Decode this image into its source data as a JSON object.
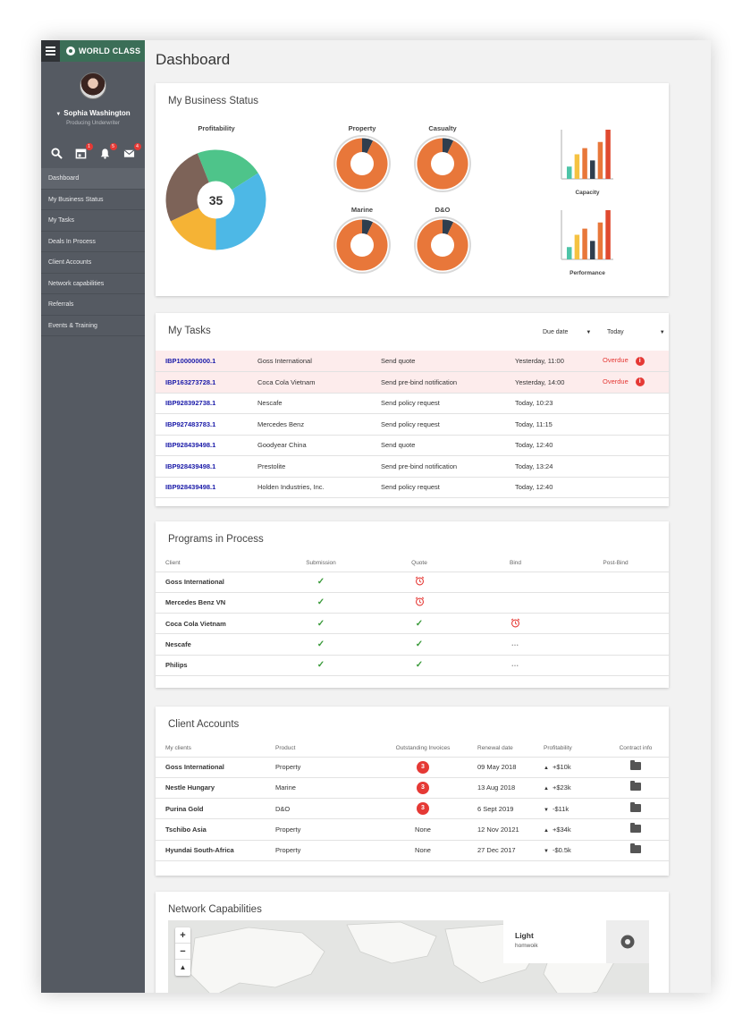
{
  "sidebar": {
    "brand": "WORLD CLASS",
    "user_name": "Sophia Washington",
    "user_role": "Producing Underwriter",
    "badges": {
      "calendar": "1",
      "bell": "5",
      "mail": "4"
    },
    "items": [
      "Dashboard",
      "My Business Status",
      "My Tasks",
      "Deals In Process",
      "Client Accounts",
      "Network capabilities",
      "Referrals",
      "Events & Training"
    ]
  },
  "page": {
    "title": "Dashboard"
  },
  "business_status": {
    "title": "My Business Status",
    "profitability_label": "Profitability",
    "profitability_value": "35",
    "donut_labels": [
      "Property",
      "Casualty",
      "Marine",
      "D&O"
    ],
    "capacity_label": "Capacity",
    "performance_label": "Performance"
  },
  "chart_data": [
    {
      "type": "pie",
      "title": "Profitability",
      "center_label": "35",
      "slices": [
        {
          "value": 22,
          "color": "#4ec48a"
        },
        {
          "value": 34,
          "color": "#4db8e6"
        },
        {
          "value": 18,
          "color": "#f5b335"
        },
        {
          "value": 26,
          "color": "#7d6358"
        }
      ]
    },
    {
      "type": "pie",
      "title": "Property / Casualty / Marine / D&O",
      "slices": [
        {
          "value": 93,
          "color": "#e8773a"
        },
        {
          "value": 7,
          "color": "#2f3e4e"
        }
      ]
    },
    {
      "type": "bar",
      "title": "Capacity",
      "values": [
        2,
        4,
        5,
        3,
        6,
        8
      ],
      "colors": [
        "#4ec4a8",
        "#f5c242",
        "#e8773a",
        "#2f3e4e",
        "#e8773a",
        "#e04a2f"
      ]
    },
    {
      "type": "bar",
      "title": "Performance",
      "values": [
        2,
        4,
        5,
        3,
        6,
        8
      ],
      "colors": [
        "#4ec4a8",
        "#f5c242",
        "#e8773a",
        "#2f3e4e",
        "#e8773a",
        "#e04a2f"
      ]
    }
  ],
  "tasks": {
    "title": "My Tasks",
    "sort_label": "Due date",
    "filter_label": "Today",
    "rows": [
      {
        "id": "IBP100000000.1",
        "client": "Goss International",
        "action": "Send quote",
        "due": "Yesterday, 11:00",
        "status": "Overdue"
      },
      {
        "id": "IBP163273728.1",
        "client": "Coca Cola Vietnam",
        "action": "Send pre-bind notification",
        "due": "Yesterday, 14:00",
        "status": "Overdue"
      },
      {
        "id": "IBP928392738.1",
        "client": "Nescafe",
        "action": "Send policy request",
        "due": "Today, 10:23",
        "status": ""
      },
      {
        "id": "IBP927483783.1",
        "client": "Mercedes Benz",
        "action": "Send policy request",
        "due": "Today, 11:15",
        "status": ""
      },
      {
        "id": "IBP928439498.1",
        "client": "Goodyear China",
        "action": "Send quote",
        "due": "Today, 12:40",
        "status": ""
      },
      {
        "id": "IBP928439498.1",
        "client": "Prestolite",
        "action": "Send pre-bind notification",
        "due": "Today, 13:24",
        "status": ""
      },
      {
        "id": "IBP928439498.1",
        "client": "Holden Industries, Inc.",
        "action": "Send policy request",
        "due": "Today, 12:40",
        "status": ""
      }
    ]
  },
  "programs": {
    "title": "Programs in Process",
    "headers": [
      "Client",
      "Submission",
      "Quote",
      "Bind",
      "Post-Bind"
    ],
    "rows": [
      {
        "client": "Goss International",
        "submission": "check",
        "quote": "clock",
        "bind": "",
        "post_bind": ""
      },
      {
        "client": "Mercedes Benz VN",
        "submission": "check",
        "quote": "clock",
        "bind": "",
        "post_bind": ""
      },
      {
        "client": "Coca Cola Vietnam",
        "submission": "check",
        "quote": "check",
        "bind": "clock",
        "post_bind": ""
      },
      {
        "client": "Nescafe",
        "submission": "check",
        "quote": "check",
        "bind": "dots",
        "post_bind": ""
      },
      {
        "client": "Philips",
        "submission": "check",
        "quote": "check",
        "bind": "dots",
        "post_bind": ""
      }
    ]
  },
  "clients": {
    "title": "Client Accounts",
    "headers": [
      "My clients",
      "Product",
      "Outstanding Invoices",
      "Renewal date",
      "Profitability",
      "Contract info"
    ],
    "rows": [
      {
        "client": "Goss International",
        "product": "Property",
        "invoices": "3",
        "renewal": "09 May 2018",
        "profit": "+$10k",
        "trend": "up"
      },
      {
        "client": "Nestle Hungary",
        "product": "Marine",
        "invoices": "3",
        "renewal": "13 Aug 2018",
        "profit": "+$23k",
        "trend": "up"
      },
      {
        "client": "Purina Gold",
        "product": "D&O",
        "invoices": "3",
        "renewal": "6 Sept 2019",
        "profit": "-$11k",
        "trend": "down"
      },
      {
        "client": "Tschibo Asia",
        "product": "Property",
        "invoices": "None",
        "renewal": "12 Nov 20121",
        "profit": "+$34k",
        "trend": "up"
      },
      {
        "client": "Hyundai South-Africa",
        "product": "Property",
        "invoices": "None",
        "renewal": "27 Dec 2017",
        "profit": "-$0.5k",
        "trend": "down"
      }
    ]
  },
  "network": {
    "title": "Network Capabilities",
    "info_title": "Light",
    "info_sub": "homwoik"
  }
}
